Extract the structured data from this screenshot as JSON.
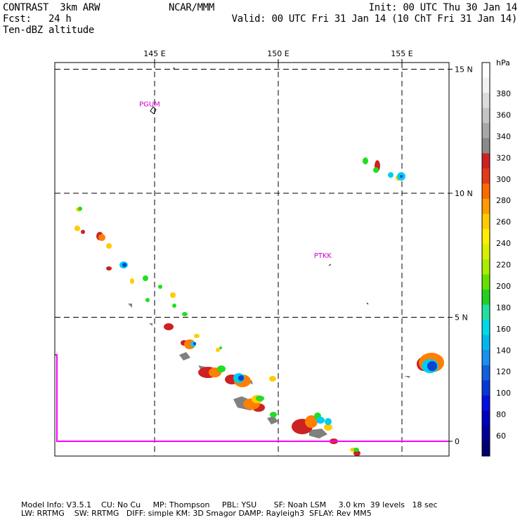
{
  "header": {
    "left": [
      "CONTRAST  3km ARW",
      "Fcst:   24 h",
      "Ten-dBZ altitude"
    ],
    "center": "NCAR/MMM",
    "right": [
      "Init: 00 UTC Thu 30 Jan 14",
      "Valid: 00 UTC Fri 31 Jan 14 (10 ChT Fri 31 Jan 14)"
    ]
  },
  "map": {
    "lon_labels": [
      "145 E",
      "150 E",
      "155 E"
    ],
    "lat_labels": [
      "15 N",
      "10 N",
      "5 N",
      "0"
    ],
    "lon_values": [
      145,
      150,
      155
    ],
    "lat_values": [
      15,
      10,
      5,
      0
    ],
    "stations": [
      {
        "label": "PGUM",
        "lon": 144.8,
        "lat": 13.5
      },
      {
        "label": "PTKK",
        "lon": 151.8,
        "lat": 7.4
      }
    ],
    "colors": {
      "station": "#cc00cc",
      "boundary": "#ff00ff"
    }
  },
  "colorbar": {
    "unit": "hPa",
    "levels": [
      "60",
      "80",
      "100",
      "120",
      "140",
      "160",
      "180",
      "200",
      "220",
      "240",
      "260",
      "280",
      "300",
      "320",
      "340",
      "360",
      "380"
    ]
  },
  "footer": [
    "Model Info: V3.5.1    CU: No Cu     MP: Thompson     PBL: YSU       SF: Noah LSM     3.0 km  39 levels   18 sec",
    "LW: RRTMG    SW: RRTMG   DIFF: simple KM: 3D Smagor DAMP: Rayleigh3  SFLAY: Rev MM5"
  ]
}
